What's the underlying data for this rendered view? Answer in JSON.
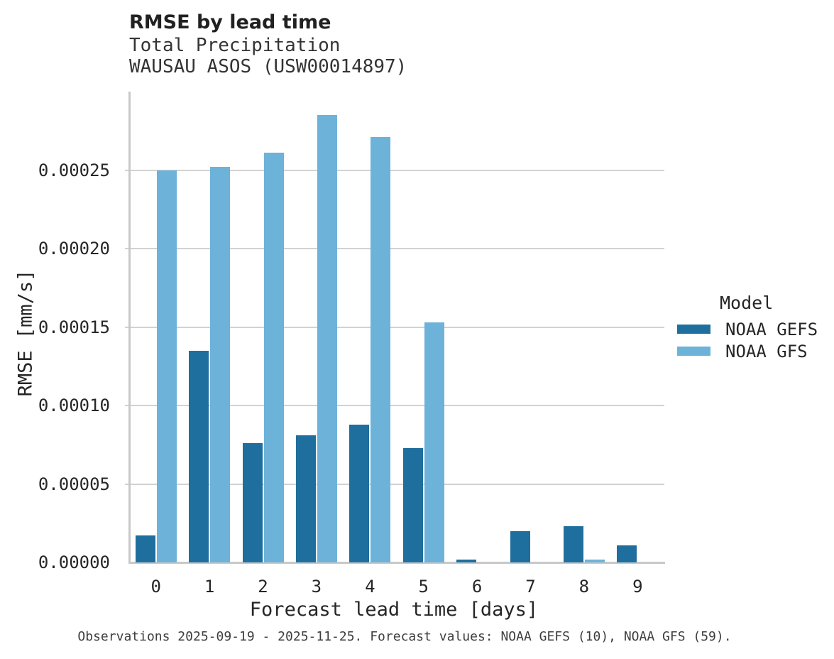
{
  "chart_data": {
    "type": "bar",
    "title": "RMSE by lead time",
    "subtitle": [
      "Total Precipitation",
      "WAUSAU ASOS (USW00014897)"
    ],
    "ylabel": "RMSE [mm/s]",
    "xlabel": "Forecast lead time [days]",
    "categories": [
      "0",
      "1",
      "2",
      "3",
      "4",
      "5",
      "6",
      "7",
      "8",
      "9"
    ],
    "yticks": [
      "0.00000",
      "0.00005",
      "0.00010",
      "0.00015",
      "0.00020",
      "0.00025"
    ],
    "ylim": [
      0,
      0.0003
    ],
    "grid": true,
    "legend_title": "Model",
    "legend_position": "right",
    "series": [
      {
        "name": "NOAA GEFS",
        "color": "#1f6f9e",
        "values": [
          1.7e-05,
          0.000135,
          7.6e-05,
          8.1e-05,
          8.8e-05,
          7.3e-05,
          2e-06,
          2e-05,
          2.3e-05,
          1.1e-05
        ]
      },
      {
        "name": "NOAA GFS",
        "color": "#6db2d9",
        "values": [
          0.00025,
          0.000252,
          0.000261,
          0.000285,
          0.000271,
          0.000153,
          0,
          0,
          2e-06,
          0
        ]
      }
    ],
    "caption": "Observations 2025-09-19 - 2025-11-25. Forecast values: NOAA GEFS (10), NOAA GFS (59)."
  }
}
